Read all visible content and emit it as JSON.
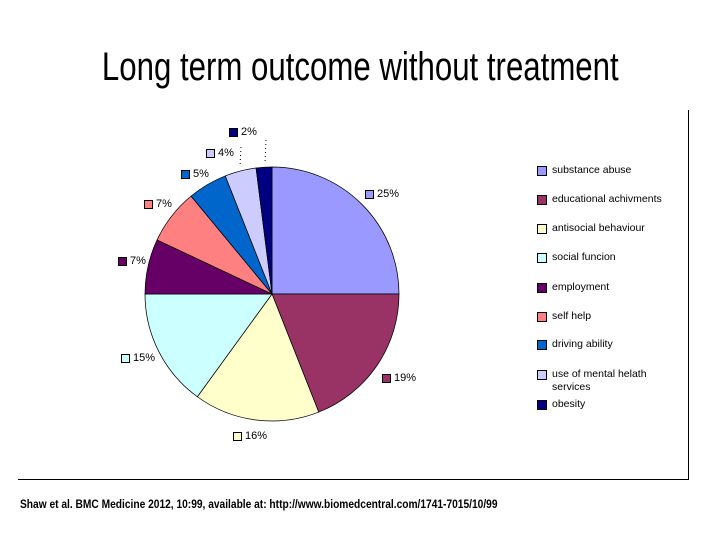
{
  "slide": {
    "title": "Long term outcome without treatment",
    "footer": "Shaw et al. BMC Medicine 2012, 10:99, available at: http://www.biomedcentral.com/1741-7015/10/99"
  },
  "chart_data": {
    "type": "pie",
    "title": "Long term outcome without treatment",
    "legend_position": "right",
    "direction": "clockwise",
    "start_angle_deg": 0,
    "unit": "%",
    "categories": [
      "substance abuse",
      "educational achivments",
      "antisocial behaviour",
      "social funcion",
      "employment",
      "self help",
      "driving ability",
      "use of mental helath services",
      "obesity"
    ],
    "values": [
      25,
      19,
      16,
      15,
      7,
      7,
      5,
      4,
      2
    ],
    "labels": [
      "25%",
      "19%",
      "16%",
      "15%",
      "7%",
      "7%",
      "5%",
      "4%",
      "2%"
    ],
    "colors": [
      "#9999FF",
      "#993366",
      "#FFFFCC",
      "#CCFFFF",
      "#660066",
      "#FF8080",
      "#0066CC",
      "#CCCCFF",
      "#000080"
    ],
    "outline_color": "#000000"
  }
}
